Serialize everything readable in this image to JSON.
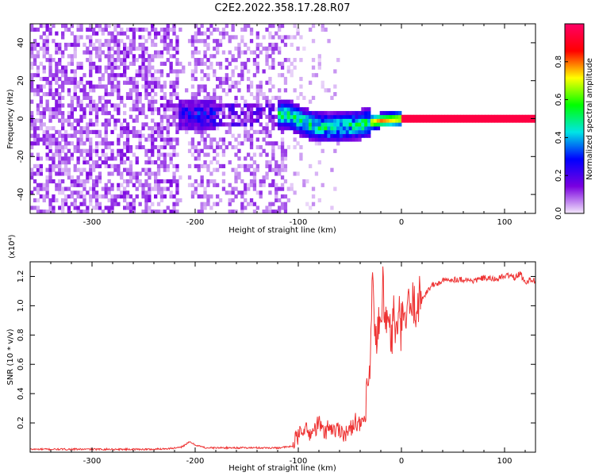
{
  "title": "C2E2.2022.358.17.28.R07",
  "chart_data": [
    {
      "type": "heatmap",
      "xlabel": "Height of straight line (km)",
      "ylabel": "Frequency (Hz)",
      "xlim": [
        -360,
        130
      ],
      "ylim": [
        -50,
        50
      ],
      "xticks": [
        "-300",
        "-200",
        "-100",
        "0",
        "100"
      ],
      "xtick_values": [
        -300,
        -200,
        -100,
        0,
        100
      ],
      "yticks": [
        "40",
        "20",
        "0",
        "-20",
        "-40"
      ],
      "ytick_values": [
        40,
        20,
        0,
        -20,
        -40
      ],
      "colorbar": {
        "label": "Normalized spectral amplitude",
        "range": [
          0,
          1
        ],
        "ticks": [
          "0.0",
          "0.2",
          "0.4",
          "0.6",
          "0.8"
        ],
        "tick_values": [
          0.0,
          0.2,
          0.4,
          0.6,
          0.8
        ],
        "colormap": [
          "#f4e8fb",
          "#7a00e0",
          "#0000ff",
          "#00e5e5",
          "#00ff00",
          "#ffff00",
          "#ff0000",
          "#ff0066"
        ]
      },
      "regions": [
        {
          "x": [
            -360,
            -215
          ],
          "y": [
            -50,
            50
          ],
          "amplitude": 0.1,
          "note_level": "scattered noise"
        },
        {
          "x": [
            -215,
            -205
          ],
          "y": [
            -50,
            50
          ],
          "amplitude": 0.02
        },
        {
          "x": [
            -205,
            -110
          ],
          "y": [
            -50,
            50
          ],
          "amplitude": 0.08
        },
        {
          "x": [
            -210,
            -190
          ],
          "y": [
            -8,
            8
          ],
          "amplitude": 0.3
        },
        {
          "x": [
            -120,
            -30
          ],
          "y": [
            -10,
            5
          ],
          "amplitude": 0.45
        },
        {
          "x": [
            -30,
            0
          ],
          "y": [
            -4,
            3
          ],
          "amplitude": 0.7
        },
        {
          "x": [
            0,
            130
          ],
          "y": [
            -1.5,
            1.5
          ],
          "amplitude": 0.95
        }
      ],
      "ridge": [
        {
          "x": -110,
          "y": 2
        },
        {
          "x": -90,
          "y": -3
        },
        {
          "x": -70,
          "y": -5
        },
        {
          "x": -55,
          "y": -4
        },
        {
          "x": -40,
          "y": -3
        },
        {
          "x": -20,
          "y": -1
        },
        {
          "x": 0,
          "y": 0
        },
        {
          "x": 130,
          "y": 0
        }
      ]
    },
    {
      "type": "line",
      "xlabel": "Height of straight line (km)",
      "ylabel": "SNR (10 * v/v)",
      "y_multiplier": "(x10⁴)",
      "xlim": [
        -360,
        130
      ],
      "ylim": [
        0,
        1.3
      ],
      "xticks": [
        "-300",
        "-200",
        "-100",
        "0",
        "100"
      ],
      "xtick_values": [
        -300,
        -200,
        -100,
        0,
        100
      ],
      "yticks": [
        "0.2",
        "0.4",
        "0.6",
        "0.8",
        "1.0",
        "1.2"
      ],
      "ytick_values": [
        0.2,
        0.4,
        0.6,
        0.8,
        1.0,
        1.2
      ],
      "color": "#ee3333",
      "series": [
        {
          "x": [
            -360,
            -320,
            -280,
            -240,
            -215,
            -205,
            -200,
            -190,
            -170,
            -150,
            -120,
            -105,
            -100,
            -95,
            -90,
            -85,
            -80,
            -75,
            -70,
            -65,
            -60,
            -55,
            -50,
            -45,
            -40,
            -35,
            -32,
            -30,
            -28,
            -26,
            -24,
            -22,
            -20,
            -18,
            -15,
            -12,
            -10,
            -8,
            -5,
            -2,
            0,
            5,
            10,
            15,
            20,
            25,
            30,
            35,
            40,
            50,
            60,
            70,
            80,
            90,
            100,
            105,
            110,
            115,
            120,
            125,
            130
          ],
          "y": [
            0.02,
            0.02,
            0.02,
            0.02,
            0.03,
            0.07,
            0.05,
            0.03,
            0.03,
            0.03,
            0.03,
            0.04,
            0.08,
            0.15,
            0.1,
            0.12,
            0.18,
            0.1,
            0.16,
            0.12,
            0.14,
            0.1,
            0.12,
            0.2,
            0.15,
            0.22,
            0.45,
            0.6,
            1.25,
            0.7,
            0.8,
            0.9,
            0.75,
            1.2,
            0.85,
            0.95,
            0.7,
            0.95,
            0.8,
            0.9,
            0.85,
            0.95,
            1.0,
            1.02,
            1.05,
            1.1,
            1.14,
            1.15,
            1.17,
            1.18,
            1.18,
            1.17,
            1.19,
            1.18,
            1.2,
            1.21,
            1.19,
            1.22,
            1.16,
            1.18,
            1.17
          ]
        }
      ]
    }
  ]
}
